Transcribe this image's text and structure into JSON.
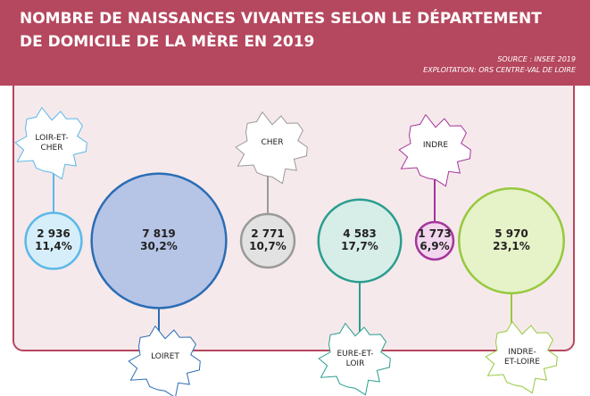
{
  "chart_data": {
    "type": "bubble",
    "title": "NOMBRE DE NAISSANCES VIVANTES SELON LE DÉPARTEMENT DE DOMICILE DE LA MÈRE EN 2019",
    "source": "SOURCE : INSEE 2019",
    "exploitation": "EXPLOITATION: ORS CENTRE-VAL DE LOIRE",
    "categories": [
      "LOIR-ET-CHER",
      "LOIRET",
      "CHER",
      "EURE-ET-LOIR",
      "INDRE",
      "INDRE-ET-LOIRE"
    ],
    "values": [
      2936,
      7819,
      2771,
      4583,
      1773,
      5970
    ],
    "value_labels": [
      "2 936",
      "7 819",
      "2 771",
      "4 583",
      "1 773",
      "5 970"
    ],
    "shares": [
      11.4,
      30.2,
      10.7,
      17.7,
      6.9,
      23.1
    ],
    "share_labels": [
      "11,4%",
      "30,2%",
      "10,7%",
      "17,7%",
      "6,9%",
      "23,1%"
    ],
    "colors": [
      "#5bb8e8",
      "#2a6db5",
      "#9a9a9a",
      "#2a9d8f",
      "#a5359c",
      "#96c93d"
    ],
    "fills": [
      "#d6eefa",
      "#b6c4e6",
      "#e2e2e2",
      "#d6ede8",
      "#f2d6ee",
      "#e6f2c8"
    ]
  }
}
